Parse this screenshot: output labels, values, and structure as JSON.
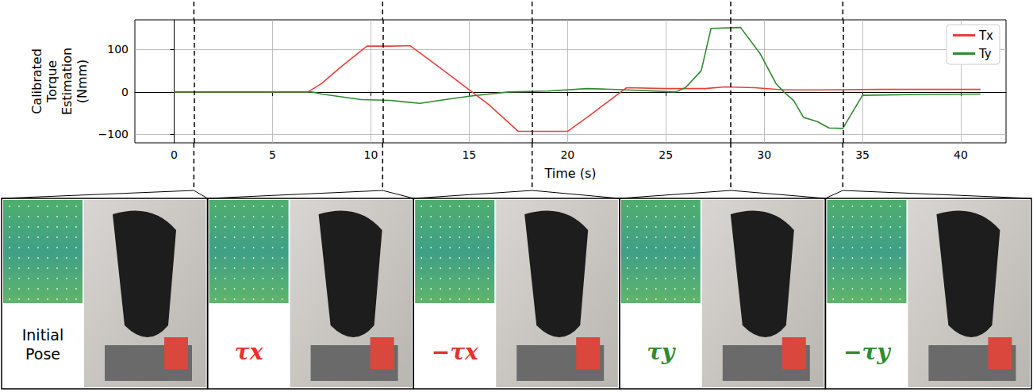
{
  "chart_data": {
    "type": "line",
    "y_label": "Calibrated Torque Estimation (Nmm)",
    "x_label": "Time (s)",
    "xlim": [
      -2,
      42.3
    ],
    "xticks": [
      0,
      5,
      10,
      15,
      20,
      25,
      30,
      35,
      40
    ],
    "ylim": [
      -120,
      170
    ],
    "yticks": [
      {
        "value": -100,
        "label": "−100"
      },
      0,
      100
    ],
    "grid": true,
    "legend": "upper right",
    "vlines": [
      1,
      10.6,
      18.2,
      28.3,
      34
    ],
    "series": [
      {
        "name": "Tx",
        "color": "#e8403a",
        "x": [
          0,
          3,
          6.8,
          7.5,
          8.5,
          9.8,
          11,
          12,
          13,
          14,
          15,
          16,
          17.5,
          19,
          20,
          21,
          22,
          23,
          25,
          27,
          28,
          29.5,
          31,
          33,
          36,
          41
        ],
        "values": [
          0,
          0,
          0,
          20,
          60,
          108,
          108,
          109,
          75,
          40,
          5,
          -30,
          -93,
          -93,
          -93,
          -60,
          -25,
          10,
          8,
          8,
          12,
          10,
          5,
          5,
          6,
          6
        ]
      },
      {
        "name": "Ty",
        "color": "#2e8b2e",
        "x": [
          0,
          3,
          7,
          7.5,
          9.5,
          11,
          12.5,
          13.5,
          15,
          17,
          19,
          21,
          23,
          25.5,
          26,
          26.8,
          27.3,
          28.8,
          29.8,
          30.6,
          31,
          31.5,
          32,
          32.7,
          33.3,
          34,
          35,
          38,
          41
        ],
        "values": [
          0,
          0,
          0,
          -5,
          -18,
          -20,
          -27,
          -20,
          -10,
          0,
          2,
          8,
          5,
          0,
          10,
          50,
          150,
          152,
          90,
          20,
          0,
          -20,
          -60,
          -70,
          -85,
          -86,
          -8,
          -6,
          -5
        ]
      }
    ]
  },
  "panels": [
    {
      "label": "Initial Pose",
      "color": "#000000"
    },
    {
      "label": "τx",
      "color": "#e8302a"
    },
    {
      "label": "−τx",
      "color": "#e8302a"
    },
    {
      "label": "τy",
      "color": "#2e8b2e"
    },
    {
      "label": "−τy",
      "color": "#2e8b2e"
    }
  ]
}
